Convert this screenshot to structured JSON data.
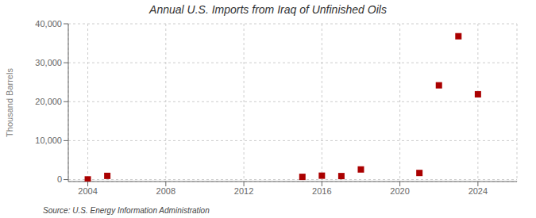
{
  "chart_data": {
    "type": "scatter",
    "title": "Annual U.S. Imports from Iraq of Unfinished Oils",
    "ylabel": "Thousand Barrels",
    "annotations": [
      "Source: U.S. Energy Information Administration"
    ],
    "x": [
      2004,
      2005,
      2015,
      2016,
      2017,
      2018,
      2021,
      2022,
      2023,
      2024
    ],
    "values": [
      50,
      950,
      700,
      1000,
      900,
      2600,
      1700,
      24200,
      36800,
      21900
    ],
    "color": "#aa0000",
    "marker": "square",
    "xlim": [
      2003,
      2026
    ],
    "xticks": [
      2004,
      2008,
      2012,
      2016,
      2020,
      2024
    ],
    "ylim": [
      -500,
      40000
    ],
    "yticks": [
      0,
      {
        "value": 10000,
        "label": "10,000"
      },
      {
        "value": 20000,
        "label": "20,000"
      },
      {
        "value": 30000,
        "label": "30,000"
      },
      {
        "value": 40000,
        "label": "40,000"
      }
    ],
    "grid": true
  }
}
